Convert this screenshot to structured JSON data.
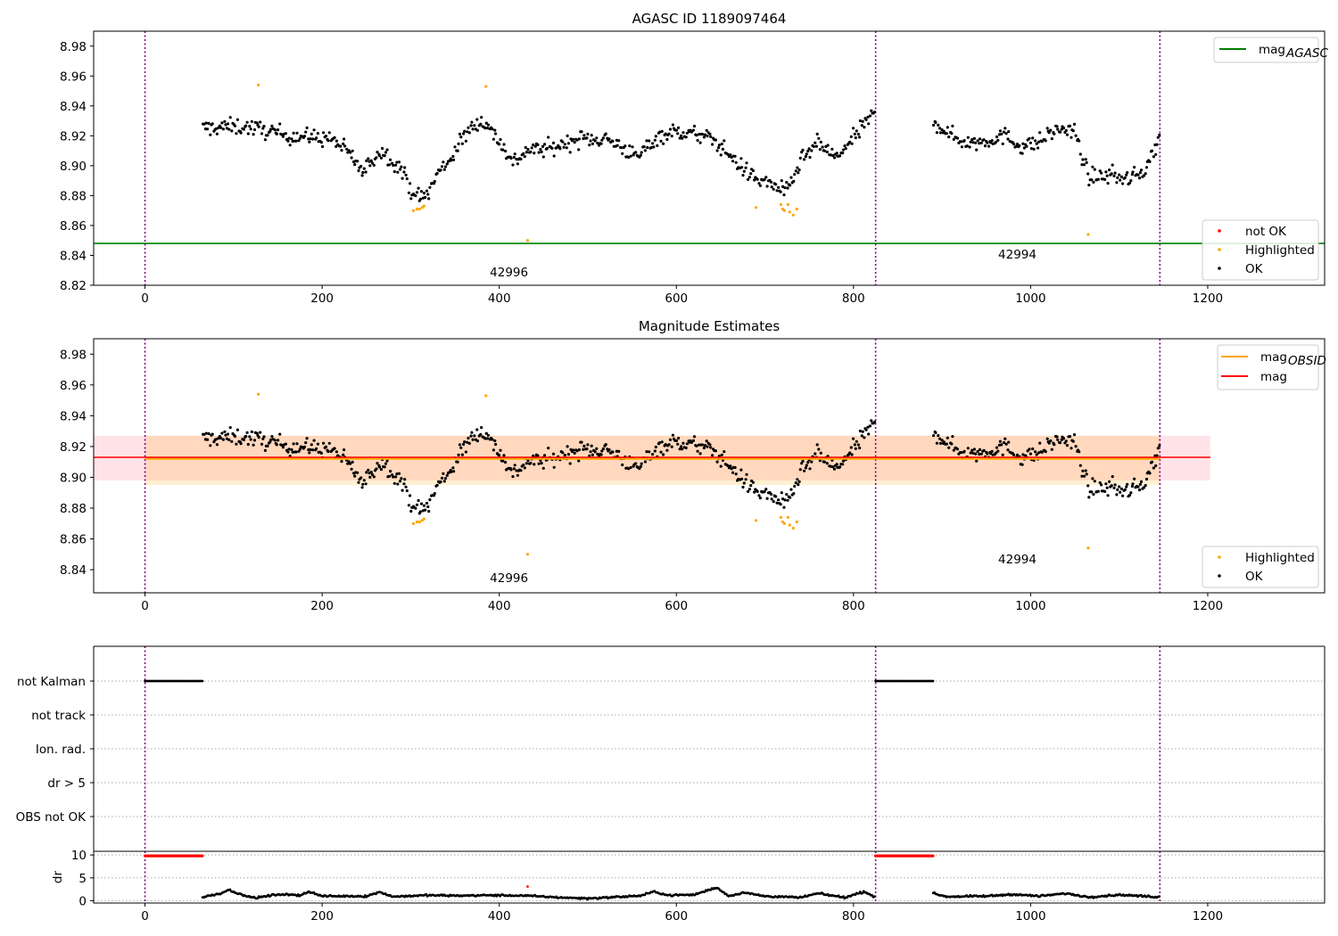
{
  "chart_data": [
    {
      "type": "scatter",
      "title": "AGASC ID 1189097464",
      "xlim": [
        -58,
        1332
      ],
      "ylim": [
        8.82,
        8.99
      ],
      "xticks": [
        "0",
        "200",
        "400",
        "600",
        "800",
        "1000",
        "1200"
      ],
      "yticks": [
        "8.82",
        "8.84",
        "8.86",
        "8.88",
        "8.90",
        "8.92",
        "8.94",
        "8.96",
        "8.98"
      ],
      "vlines_x": [
        0,
        825,
        1146
      ],
      "vline_color": "#800080",
      "hline": {
        "y": 8.848,
        "color": "#008000"
      },
      "obsid_annotations": [
        {
          "text": "42996",
          "x": 411,
          "y": 8.826
        },
        {
          "text": "42994",
          "x": 985,
          "y": 8.838
        }
      ],
      "legend_top": {
        "placement": "top-right",
        "entries": [
          {
            "label": "mag",
            "sub": "AGASC",
            "color": "#008000",
            "kind": "line"
          }
        ]
      },
      "legend_bottom": {
        "placement": "lower-right",
        "entries": [
          {
            "label": "not OK",
            "color": "#ff0000",
            "kind": "dot"
          },
          {
            "label": "Highlighted",
            "color": "#ffa500",
            "kind": "dot"
          },
          {
            "label": "OK",
            "color": "#000000",
            "kind": "dot"
          }
        ]
      },
      "series": [
        {
          "label": "OK",
          "color": "#000000",
          "description": "black points x=65..825 and 890..1146, mag ~8.88-8.95 following the curve below",
          "points_generated_by": "curve"
        },
        {
          "label": "Highlighted",
          "color": "#ffa500",
          "points": [
            [
              128,
              8.954
            ],
            [
              385,
              8.953
            ],
            [
              432,
              8.85
            ],
            [
              303,
              8.87
            ],
            [
              307,
              8.871
            ],
            [
              310,
              8.871
            ],
            [
              313,
              8.872
            ],
            [
              315,
              8.873
            ],
            [
              690,
              8.872
            ],
            [
              718,
              8.874
            ],
            [
              720,
              8.871
            ],
            [
              722,
              8.87
            ],
            [
              726,
              8.874
            ],
            [
              728,
              8.869
            ],
            [
              732,
              8.867
            ],
            [
              736,
              8.871
            ],
            [
              1065,
              8.854
            ]
          ]
        }
      ],
      "curve": [
        [
          65,
          8.925
        ],
        [
          90,
          8.926
        ],
        [
          115,
          8.926
        ],
        [
          140,
          8.923
        ],
        [
          165,
          8.92
        ],
        [
          190,
          8.919
        ],
        [
          210,
          8.918
        ],
        [
          225,
          8.911
        ],
        [
          235,
          8.905
        ],
        [
          245,
          8.895
        ],
        [
          255,
          8.903
        ],
        [
          265,
          8.91
        ],
        [
          275,
          8.906
        ],
        [
          290,
          8.897
        ],
        [
          300,
          8.884
        ],
        [
          310,
          8.878
        ],
        [
          320,
          8.882
        ],
        [
          330,
          8.895
        ],
        [
          345,
          8.905
        ],
        [
          355,
          8.915
        ],
        [
          365,
          8.923
        ],
        [
          375,
          8.93
        ],
        [
          385,
          8.928
        ],
        [
          395,
          8.92
        ],
        [
          405,
          8.912
        ],
        [
          415,
          8.902
        ],
        [
          430,
          8.91
        ],
        [
          460,
          8.912
        ],
        [
          490,
          8.918
        ],
        [
          520,
          8.918
        ],
        [
          540,
          8.912
        ],
        [
          555,
          8.905
        ],
        [
          565,
          8.912
        ],
        [
          580,
          8.92
        ],
        [
          600,
          8.923
        ],
        [
          620,
          8.921
        ],
        [
          640,
          8.918
        ],
        [
          660,
          8.907
        ],
        [
          675,
          8.898
        ],
        [
          690,
          8.891
        ],
        [
          710,
          8.887
        ],
        [
          725,
          8.882
        ],
        [
          740,
          8.903
        ],
        [
          760,
          8.915
        ],
        [
          780,
          8.905
        ],
        [
          795,
          8.915
        ],
        [
          810,
          8.926
        ],
        [
          825,
          8.936
        ],
        [
          890,
          8.93
        ],
        [
          910,
          8.92
        ],
        [
          930,
          8.915
        ],
        [
          950,
          8.917
        ],
        [
          970,
          8.92
        ],
        [
          990,
          8.913
        ],
        [
          1010,
          8.916
        ],
        [
          1030,
          8.925
        ],
        [
          1050,
          8.922
        ],
        [
          1065,
          8.892
        ],
        [
          1090,
          8.894
        ],
        [
          1110,
          8.891
        ],
        [
          1125,
          8.895
        ],
        [
          1135,
          8.905
        ],
        [
          1146,
          8.919
        ]
      ]
    },
    {
      "type": "scatter",
      "title": "Magnitude Estimates",
      "xlim": [
        -58,
        1332
      ],
      "ylim": [
        8.825,
        8.99
      ],
      "xticks": [
        "0",
        "200",
        "400",
        "600",
        "800",
        "1000",
        "1200"
      ],
      "yticks": [
        "8.84",
        "8.86",
        "8.88",
        "8.90",
        "8.92",
        "8.94",
        "8.96",
        "8.98"
      ],
      "vlines_x": [
        0,
        825,
        1146
      ],
      "mag_line": {
        "y": 8.913,
        "color": "#ff0000",
        "band": [
          8.898,
          8.927
        ],
        "band_color": "#ffc0cb",
        "x_range": [
          -58,
          1203
        ]
      },
      "mag_obsid": {
        "y": 8.912,
        "color": "#ffa500",
        "band": [
          8.895,
          8.927
        ],
        "x_range": [
          0,
          1146
        ]
      },
      "obsid_annotations": [
        {
          "text": "42996",
          "x": 411,
          "y": 8.832
        },
        {
          "text": "42994",
          "x": 985,
          "y": 8.844
        }
      ],
      "legend_top": {
        "placement": "top-right",
        "entries": [
          {
            "label": "mag",
            "sub": "OBSID",
            "color": "#ffa500",
            "kind": "line"
          },
          {
            "label": "mag",
            "sub": "",
            "color": "#ff0000",
            "kind": "line"
          }
        ]
      },
      "legend_bottom": {
        "placement": "lower-right",
        "entries": [
          {
            "label": "Highlighted",
            "color": "#ffa500",
            "kind": "dot"
          },
          {
            "label": "OK",
            "color": "#000000",
            "kind": "dot"
          }
        ]
      }
    },
    {
      "type": "scatter",
      "categories": [
        "not Kalman",
        "not track",
        "Ion. rad.",
        "dr > 5",
        "OBS not OK"
      ],
      "xlim": [
        -58,
        1332
      ],
      "flag_segments": [
        {
          "category": "not Kalman",
          "x": [
            0,
            65
          ]
        },
        {
          "category": "not Kalman",
          "x": [
            825,
            890
          ]
        }
      ]
    },
    {
      "type": "line",
      "ylabel": "dr",
      "xlim": [
        -58,
        1332
      ],
      "ylim": [
        -0.5,
        10.8
      ],
      "yticks": [
        "0",
        "5",
        "10"
      ],
      "xticks": [
        "0",
        "200",
        "400",
        "600",
        "800",
        "1000",
        "1200"
      ],
      "red_segments": [
        {
          "x": [
            0,
            65
          ],
          "y": 9.8
        },
        {
          "x": [
            825,
            890
          ],
          "y": 9.8
        }
      ],
      "red_points": [
        [
          432,
          3.1
        ]
      ],
      "dr_profile": [
        [
          65,
          0.8
        ],
        [
          85,
          1.6
        ],
        [
          95,
          2.4
        ],
        [
          110,
          1.2
        ],
        [
          125,
          0.6
        ],
        [
          150,
          1.4
        ],
        [
          175,
          1.2
        ],
        [
          185,
          2.0
        ],
        [
          200,
          1.0
        ],
        [
          250,
          1.0
        ],
        [
          265,
          1.9
        ],
        [
          280,
          0.9
        ],
        [
          320,
          1.2
        ],
        [
          350,
          1.1
        ],
        [
          390,
          1.2
        ],
        [
          430,
          1.1
        ],
        [
          470,
          0.7
        ],
        [
          500,
          0.5
        ],
        [
          530,
          0.8
        ],
        [
          560,
          1.1
        ],
        [
          575,
          2.0
        ],
        [
          590,
          1.2
        ],
        [
          620,
          1.3
        ],
        [
          645,
          2.9
        ],
        [
          660,
          1.0
        ],
        [
          675,
          1.8
        ],
        [
          700,
          1.0
        ],
        [
          740,
          0.7
        ],
        [
          760,
          1.6
        ],
        [
          790,
          0.7
        ],
        [
          812,
          2.0
        ],
        [
          825,
          0.8
        ],
        [
          890,
          1.6
        ],
        [
          905,
          0.9
        ],
        [
          950,
          1.0
        ],
        [
          980,
          1.4
        ],
        [
          1010,
          1.0
        ],
        [
          1040,
          1.6
        ],
        [
          1065,
          0.8
        ],
        [
          1100,
          1.3
        ],
        [
          1146,
          0.8
        ]
      ]
    }
  ]
}
